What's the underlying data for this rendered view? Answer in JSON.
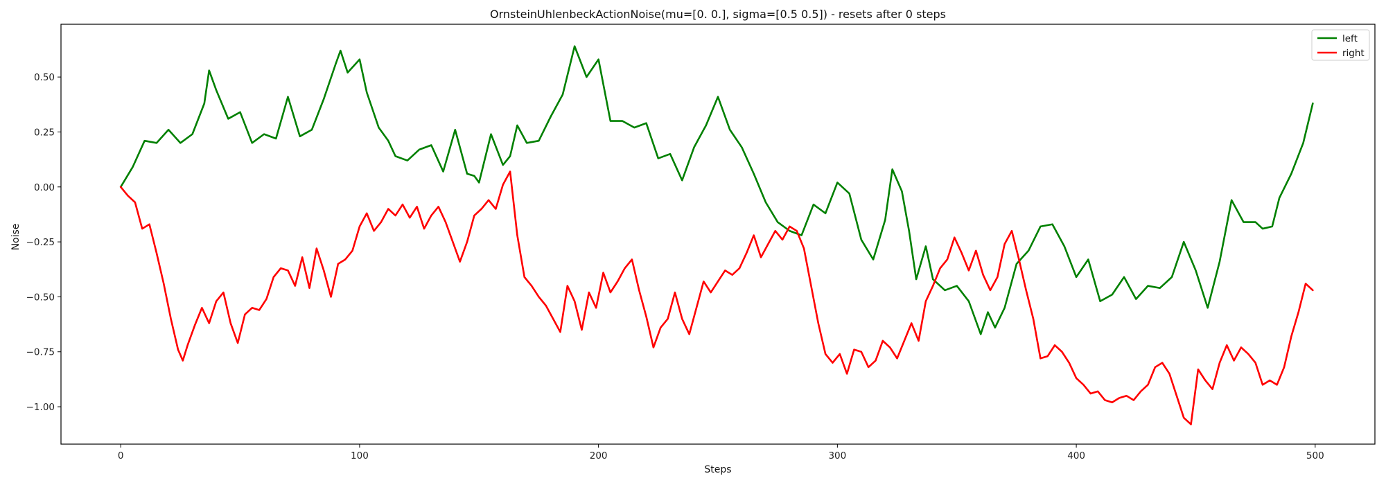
{
  "chart_data": {
    "type": "line",
    "title": "OrnsteinUhlenbeckActionNoise(mu=[0. 0.], sigma=[0.5 0.5]) - resets after 0 steps",
    "xlabel": "Steps",
    "ylabel": "Noise",
    "xlim": [
      -25,
      525
    ],
    "ylim": [
      -1.17,
      0.74
    ],
    "xticks": [
      0,
      100,
      200,
      300,
      400,
      500
    ],
    "yticks": [
      -1.0,
      -0.75,
      -0.5,
      -0.25,
      0.0,
      0.25,
      0.5
    ],
    "ytick_labels": [
      "−1.00",
      "−0.75",
      "−0.50",
      "−0.25",
      "0.00",
      "0.25",
      "0.50"
    ],
    "legend_position": "top-right",
    "grid": false,
    "series": [
      {
        "name": "left",
        "color": "#008000",
        "points": [
          [
            0,
            0.0
          ],
          [
            5,
            0.09
          ],
          [
            10,
            0.21
          ],
          [
            15,
            0.2
          ],
          [
            20,
            0.26
          ],
          [
            25,
            0.2
          ],
          [
            30,
            0.24
          ],
          [
            35,
            0.38
          ],
          [
            37,
            0.53
          ],
          [
            40,
            0.44
          ],
          [
            45,
            0.31
          ],
          [
            50,
            0.34
          ],
          [
            55,
            0.2
          ],
          [
            60,
            0.24
          ],
          [
            65,
            0.22
          ],
          [
            70,
            0.41
          ],
          [
            75,
            0.23
          ],
          [
            80,
            0.26
          ],
          [
            85,
            0.4
          ],
          [
            90,
            0.56
          ],
          [
            92,
            0.62
          ],
          [
            95,
            0.52
          ],
          [
            100,
            0.58
          ],
          [
            103,
            0.43
          ],
          [
            108,
            0.27
          ],
          [
            112,
            0.21
          ],
          [
            115,
            0.14
          ],
          [
            120,
            0.12
          ],
          [
            125,
            0.17
          ],
          [
            130,
            0.19
          ],
          [
            135,
            0.07
          ],
          [
            140,
            0.26
          ],
          [
            145,
            0.06
          ],
          [
            148,
            0.05
          ],
          [
            150,
            0.02
          ],
          [
            155,
            0.24
          ],
          [
            160,
            0.1
          ],
          [
            163,
            0.14
          ],
          [
            166,
            0.28
          ],
          [
            170,
            0.2
          ],
          [
            175,
            0.21
          ],
          [
            180,
            0.32
          ],
          [
            185,
            0.42
          ],
          [
            190,
            0.64
          ],
          [
            195,
            0.5
          ],
          [
            200,
            0.58
          ],
          [
            205,
            0.3
          ],
          [
            210,
            0.3
          ],
          [
            215,
            0.27
          ],
          [
            220,
            0.29
          ],
          [
            225,
            0.13
          ],
          [
            230,
            0.15
          ],
          [
            235,
            0.03
          ],
          [
            240,
            0.18
          ],
          [
            245,
            0.28
          ],
          [
            250,
            0.41
          ],
          [
            255,
            0.26
          ],
          [
            260,
            0.18
          ],
          [
            265,
            0.06
          ],
          [
            270,
            -0.07
          ],
          [
            275,
            -0.16
          ],
          [
            280,
            -0.2
          ],
          [
            285,
            -0.22
          ],
          [
            290,
            -0.08
          ],
          [
            295,
            -0.12
          ],
          [
            300,
            0.02
          ],
          [
            305,
            -0.03
          ],
          [
            310,
            -0.24
          ],
          [
            315,
            -0.33
          ],
          [
            320,
            -0.15
          ],
          [
            323,
            0.08
          ],
          [
            327,
            -0.02
          ],
          [
            330,
            -0.2
          ],
          [
            333,
            -0.42
          ],
          [
            337,
            -0.27
          ],
          [
            340,
            -0.42
          ],
          [
            345,
            -0.47
          ],
          [
            350,
            -0.45
          ],
          [
            355,
            -0.52
          ],
          [
            360,
            -0.67
          ],
          [
            363,
            -0.57
          ],
          [
            366,
            -0.64
          ],
          [
            370,
            -0.55
          ],
          [
            375,
            -0.35
          ],
          [
            380,
            -0.29
          ],
          [
            385,
            -0.18
          ],
          [
            390,
            -0.17
          ],
          [
            395,
            -0.27
          ],
          [
            400,
            -0.41
          ],
          [
            405,
            -0.33
          ],
          [
            410,
            -0.52
          ],
          [
            415,
            -0.49
          ],
          [
            420,
            -0.41
          ],
          [
            425,
            -0.51
          ],
          [
            430,
            -0.45
          ],
          [
            435,
            -0.46
          ],
          [
            440,
            -0.41
          ],
          [
            445,
            -0.25
          ],
          [
            450,
            -0.38
          ],
          [
            455,
            -0.55
          ],
          [
            460,
            -0.34
          ],
          [
            465,
            -0.06
          ],
          [
            470,
            -0.16
          ],
          [
            475,
            -0.16
          ],
          [
            478,
            -0.19
          ],
          [
            482,
            -0.18
          ],
          [
            485,
            -0.05
          ],
          [
            490,
            0.06
          ],
          [
            495,
            0.2
          ],
          [
            499,
            0.38
          ]
        ]
      },
      {
        "name": "right",
        "color": "#ff0000",
        "points": [
          [
            0,
            0.0
          ],
          [
            3,
            -0.04
          ],
          [
            6,
            -0.07
          ],
          [
            9,
            -0.19
          ],
          [
            12,
            -0.17
          ],
          [
            15,
            -0.3
          ],
          [
            18,
            -0.44
          ],
          [
            21,
            -0.6
          ],
          [
            24,
            -0.74
          ],
          [
            26,
            -0.79
          ],
          [
            28,
            -0.72
          ],
          [
            31,
            -0.63
          ],
          [
            34,
            -0.55
          ],
          [
            37,
            -0.62
          ],
          [
            40,
            -0.52
          ],
          [
            43,
            -0.48
          ],
          [
            46,
            -0.62
          ],
          [
            49,
            -0.71
          ],
          [
            52,
            -0.58
          ],
          [
            55,
            -0.55
          ],
          [
            58,
            -0.56
          ],
          [
            61,
            -0.51
          ],
          [
            64,
            -0.41
          ],
          [
            67,
            -0.37
          ],
          [
            70,
            -0.38
          ],
          [
            73,
            -0.45
          ],
          [
            76,
            -0.32
          ],
          [
            79,
            -0.46
          ],
          [
            82,
            -0.28
          ],
          [
            85,
            -0.38
          ],
          [
            88,
            -0.5
          ],
          [
            91,
            -0.35
          ],
          [
            94,
            -0.33
          ],
          [
            97,
            -0.29
          ],
          [
            100,
            -0.18
          ],
          [
            103,
            -0.12
          ],
          [
            106,
            -0.2
          ],
          [
            109,
            -0.16
          ],
          [
            112,
            -0.1
          ],
          [
            115,
            -0.13
          ],
          [
            118,
            -0.08
          ],
          [
            121,
            -0.14
          ],
          [
            124,
            -0.09
          ],
          [
            127,
            -0.19
          ],
          [
            130,
            -0.13
          ],
          [
            133,
            -0.09
          ],
          [
            136,
            -0.16
          ],
          [
            139,
            -0.25
          ],
          [
            142,
            -0.34
          ],
          [
            145,
            -0.25
          ],
          [
            148,
            -0.13
          ],
          [
            151,
            -0.1
          ],
          [
            154,
            -0.06
          ],
          [
            157,
            -0.1
          ],
          [
            160,
            0.01
          ],
          [
            163,
            0.07
          ],
          [
            166,
            -0.22
          ],
          [
            169,
            -0.41
          ],
          [
            172,
            -0.45
          ],
          [
            175,
            -0.5
          ],
          [
            178,
            -0.54
          ],
          [
            181,
            -0.6
          ],
          [
            184,
            -0.66
          ],
          [
            187,
            -0.45
          ],
          [
            190,
            -0.52
          ],
          [
            193,
            -0.65
          ],
          [
            196,
            -0.48
          ],
          [
            199,
            -0.55
          ],
          [
            202,
            -0.39
          ],
          [
            205,
            -0.48
          ],
          [
            208,
            -0.43
          ],
          [
            211,
            -0.37
          ],
          [
            214,
            -0.33
          ],
          [
            217,
            -0.47
          ],
          [
            220,
            -0.59
          ],
          [
            223,
            -0.73
          ],
          [
            226,
            -0.64
          ],
          [
            229,
            -0.6
          ],
          [
            232,
            -0.48
          ],
          [
            235,
            -0.6
          ],
          [
            238,
            -0.67
          ],
          [
            241,
            -0.55
          ],
          [
            244,
            -0.43
          ],
          [
            247,
            -0.48
          ],
          [
            250,
            -0.43
          ],
          [
            253,
            -0.38
          ],
          [
            256,
            -0.4
          ],
          [
            259,
            -0.37
          ],
          [
            262,
            -0.3
          ],
          [
            265,
            -0.22
          ],
          [
            268,
            -0.32
          ],
          [
            271,
            -0.26
          ],
          [
            274,
            -0.2
          ],
          [
            277,
            -0.24
          ],
          [
            280,
            -0.18
          ],
          [
            283,
            -0.2
          ],
          [
            286,
            -0.28
          ],
          [
            289,
            -0.45
          ],
          [
            292,
            -0.62
          ],
          [
            295,
            -0.76
          ],
          [
            298,
            -0.8
          ],
          [
            301,
            -0.76
          ],
          [
            304,
            -0.85
          ],
          [
            307,
            -0.74
          ],
          [
            310,
            -0.75
          ],
          [
            313,
            -0.82
          ],
          [
            316,
            -0.79
          ],
          [
            319,
            -0.7
          ],
          [
            322,
            -0.73
          ],
          [
            325,
            -0.78
          ],
          [
            328,
            -0.7
          ],
          [
            331,
            -0.62
          ],
          [
            334,
            -0.7
          ],
          [
            337,
            -0.52
          ],
          [
            340,
            -0.45
          ],
          [
            343,
            -0.37
          ],
          [
            346,
            -0.33
          ],
          [
            349,
            -0.23
          ],
          [
            352,
            -0.3
          ],
          [
            355,
            -0.38
          ],
          [
            358,
            -0.29
          ],
          [
            361,
            -0.4
          ],
          [
            364,
            -0.47
          ],
          [
            367,
            -0.41
          ],
          [
            370,
            -0.26
          ],
          [
            373,
            -0.2
          ],
          [
            376,
            -0.33
          ],
          [
            379,
            -0.47
          ],
          [
            382,
            -0.6
          ],
          [
            385,
            -0.78
          ],
          [
            388,
            -0.77
          ],
          [
            391,
            -0.72
          ],
          [
            394,
            -0.75
          ],
          [
            397,
            -0.8
          ],
          [
            400,
            -0.87
          ],
          [
            403,
            -0.9
          ],
          [
            406,
            -0.94
          ],
          [
            409,
            -0.93
          ],
          [
            412,
            -0.97
          ],
          [
            415,
            -0.98
          ],
          [
            418,
            -0.96
          ],
          [
            421,
            -0.95
          ],
          [
            424,
            -0.97
          ],
          [
            427,
            -0.93
          ],
          [
            430,
            -0.9
          ],
          [
            433,
            -0.82
          ],
          [
            436,
            -0.8
          ],
          [
            439,
            -0.85
          ],
          [
            442,
            -0.95
          ],
          [
            445,
            -1.05
          ],
          [
            448,
            -1.08
          ],
          [
            451,
            -0.83
          ],
          [
            454,
            -0.88
          ],
          [
            457,
            -0.92
          ],
          [
            460,
            -0.8
          ],
          [
            463,
            -0.72
          ],
          [
            466,
            -0.79
          ],
          [
            469,
            -0.73
          ],
          [
            472,
            -0.76
          ],
          [
            475,
            -0.8
          ],
          [
            478,
            -0.9
          ],
          [
            481,
            -0.88
          ],
          [
            484,
            -0.9
          ],
          [
            487,
            -0.82
          ],
          [
            490,
            -0.68
          ],
          [
            493,
            -0.57
          ],
          [
            496,
            -0.44
          ],
          [
            499,
            -0.47
          ]
        ]
      }
    ]
  }
}
